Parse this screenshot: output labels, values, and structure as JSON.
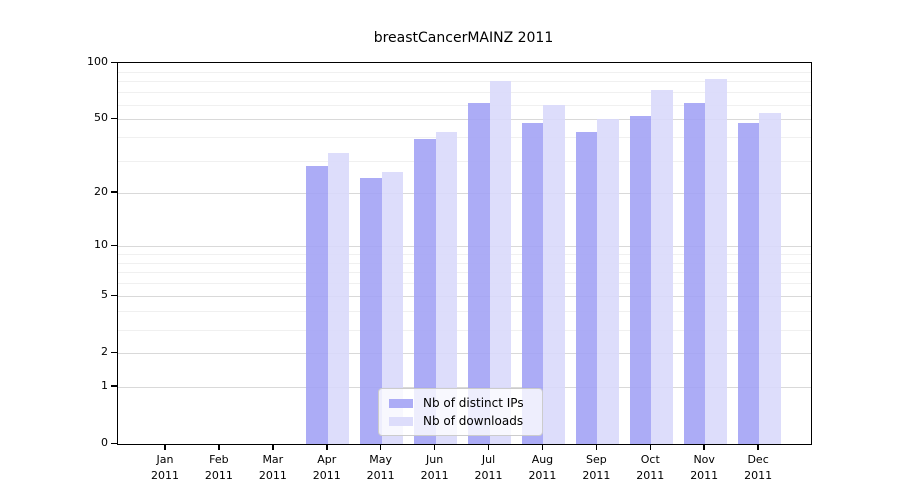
{
  "chart_data": {
    "type": "bar",
    "title": "breastCancerMAINZ 2011",
    "xlabel": "",
    "ylabel": "",
    "y_scale": "log10(1+x)",
    "ylim": [
      0,
      100
    ],
    "grid": "on",
    "y_major_ticks": [
      0,
      1,
      2,
      5,
      10,
      20,
      50,
      100
    ],
    "y_minor_gridlines": [
      3,
      4,
      6,
      7,
      8,
      9,
      30,
      40,
      60,
      70,
      80,
      90
    ],
    "months": [
      "Jan",
      "Feb",
      "Mar",
      "Apr",
      "May",
      "Jun",
      "Jul",
      "Aug",
      "Sep",
      "Oct",
      "Nov",
      "Dec"
    ],
    "year": "2011",
    "series": [
      {
        "name": "Nb of distinct IPs",
        "color": "#a0a0f5",
        "values": [
          0,
          0,
          0,
          28,
          24,
          39,
          61,
          48,
          43,
          52,
          61,
          48
        ]
      },
      {
        "name": "Nb of downloads",
        "color": "#d8d8fa",
        "values": [
          0,
          0,
          0,
          33,
          26,
          43,
          80,
          60,
          50,
          72,
          82,
          54
        ]
      }
    ],
    "legend": {
      "position": "lower center"
    }
  }
}
